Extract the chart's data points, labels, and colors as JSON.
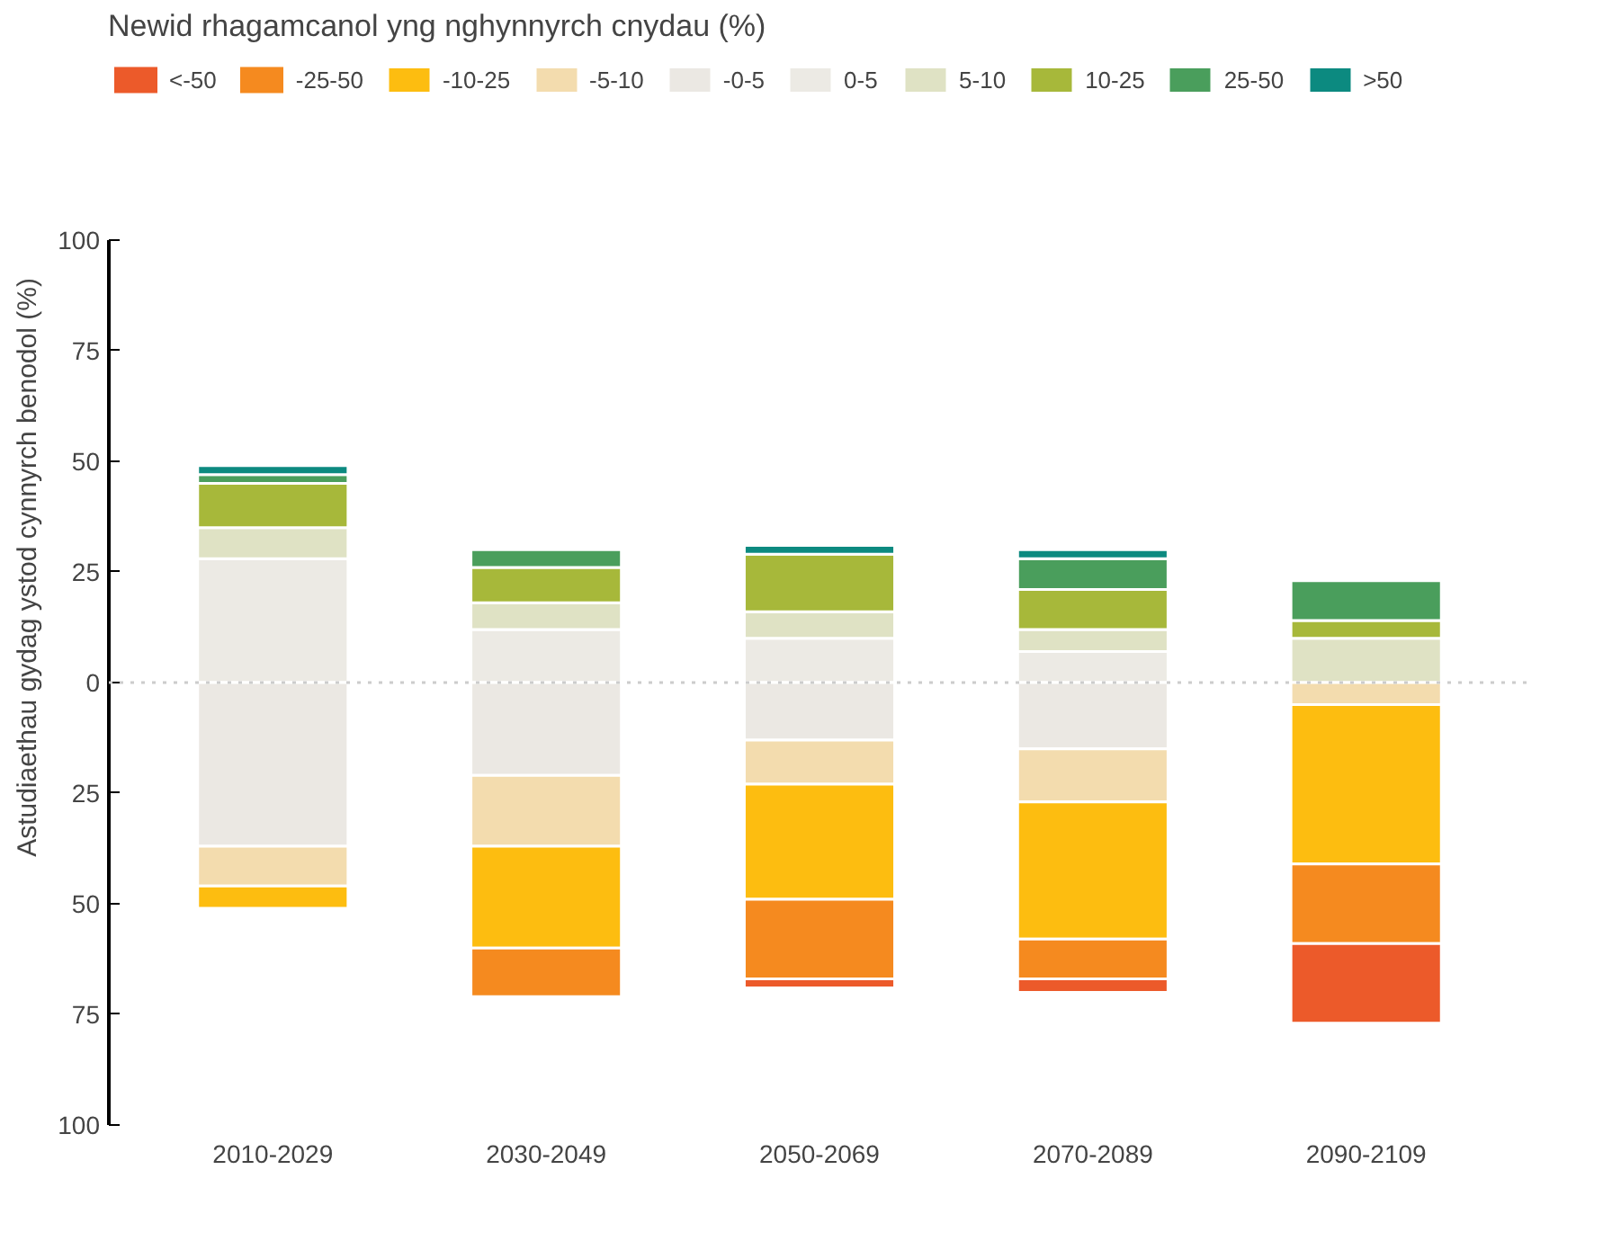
{
  "chart_data": {
    "type": "bar",
    "stacked": true,
    "legend_title": "Newid rhagamcanol yng nghynnyrch cnydau (%)",
    "ylabel": "Astudiaethau gydag ystod cynnyrch benodol (%)",
    "categories": [
      "2010-2029",
      "2030-2049",
      "2050-2069",
      "2070-2089",
      "2090-2109"
    ],
    "ylim": [
      -100,
      100
    ],
    "yticks": [
      {
        "value": -100,
        "label": "100"
      },
      {
        "value": -75,
        "label": "75"
      },
      {
        "value": -50,
        "label": "50"
      },
      {
        "value": -25,
        "label": "25"
      },
      0,
      25,
      50,
      75,
      100
    ],
    "series": [
      {
        "name": "<-50",
        "color": "#ec5a2a",
        "values": [
          0,
          0,
          -2,
          -3,
          -18
        ]
      },
      {
        "name": "-25-50",
        "color": "#f58a1f",
        "values": [
          0,
          -11,
          -18,
          -9,
          -18
        ]
      },
      {
        "name": "-10-25",
        "color": "#fdbd10",
        "values": [
          -5,
          -23,
          -26,
          -31,
          -36
        ]
      },
      {
        "name": "-5-10",
        "color": "#f3dcae",
        "values": [
          -9,
          -16,
          -10,
          -12,
          -5
        ]
      },
      {
        "name": "-0-5",
        "color": "#ebe8e3",
        "values": [
          -37,
          -21,
          -13,
          -15,
          0
        ]
      },
      {
        "name": "0-5",
        "color": "#eceae4",
        "values": [
          28,
          12,
          10,
          7,
          0
        ]
      },
      {
        "name": "5-10",
        "color": "#dfe2c4",
        "values": [
          7,
          6,
          6,
          5,
          10
        ]
      },
      {
        "name": "10-25",
        "color": "#a7b83a",
        "values": [
          10,
          8,
          13,
          9,
          4
        ]
      },
      {
        "name": "25-50",
        "color": "#4a9e5c",
        "values": [
          2,
          4,
          0,
          7,
          9
        ]
      },
      {
        "name": ">50",
        "color": "#0c8a80",
        "values": [
          2,
          0,
          2,
          2,
          0
        ]
      }
    ],
    "ref_lines": [
      {
        "axis": "y",
        "value": 0,
        "label": null,
        "color": "#cccccc",
        "line_style": "dotted"
      }
    ],
    "grid": false,
    "legend": "top"
  }
}
